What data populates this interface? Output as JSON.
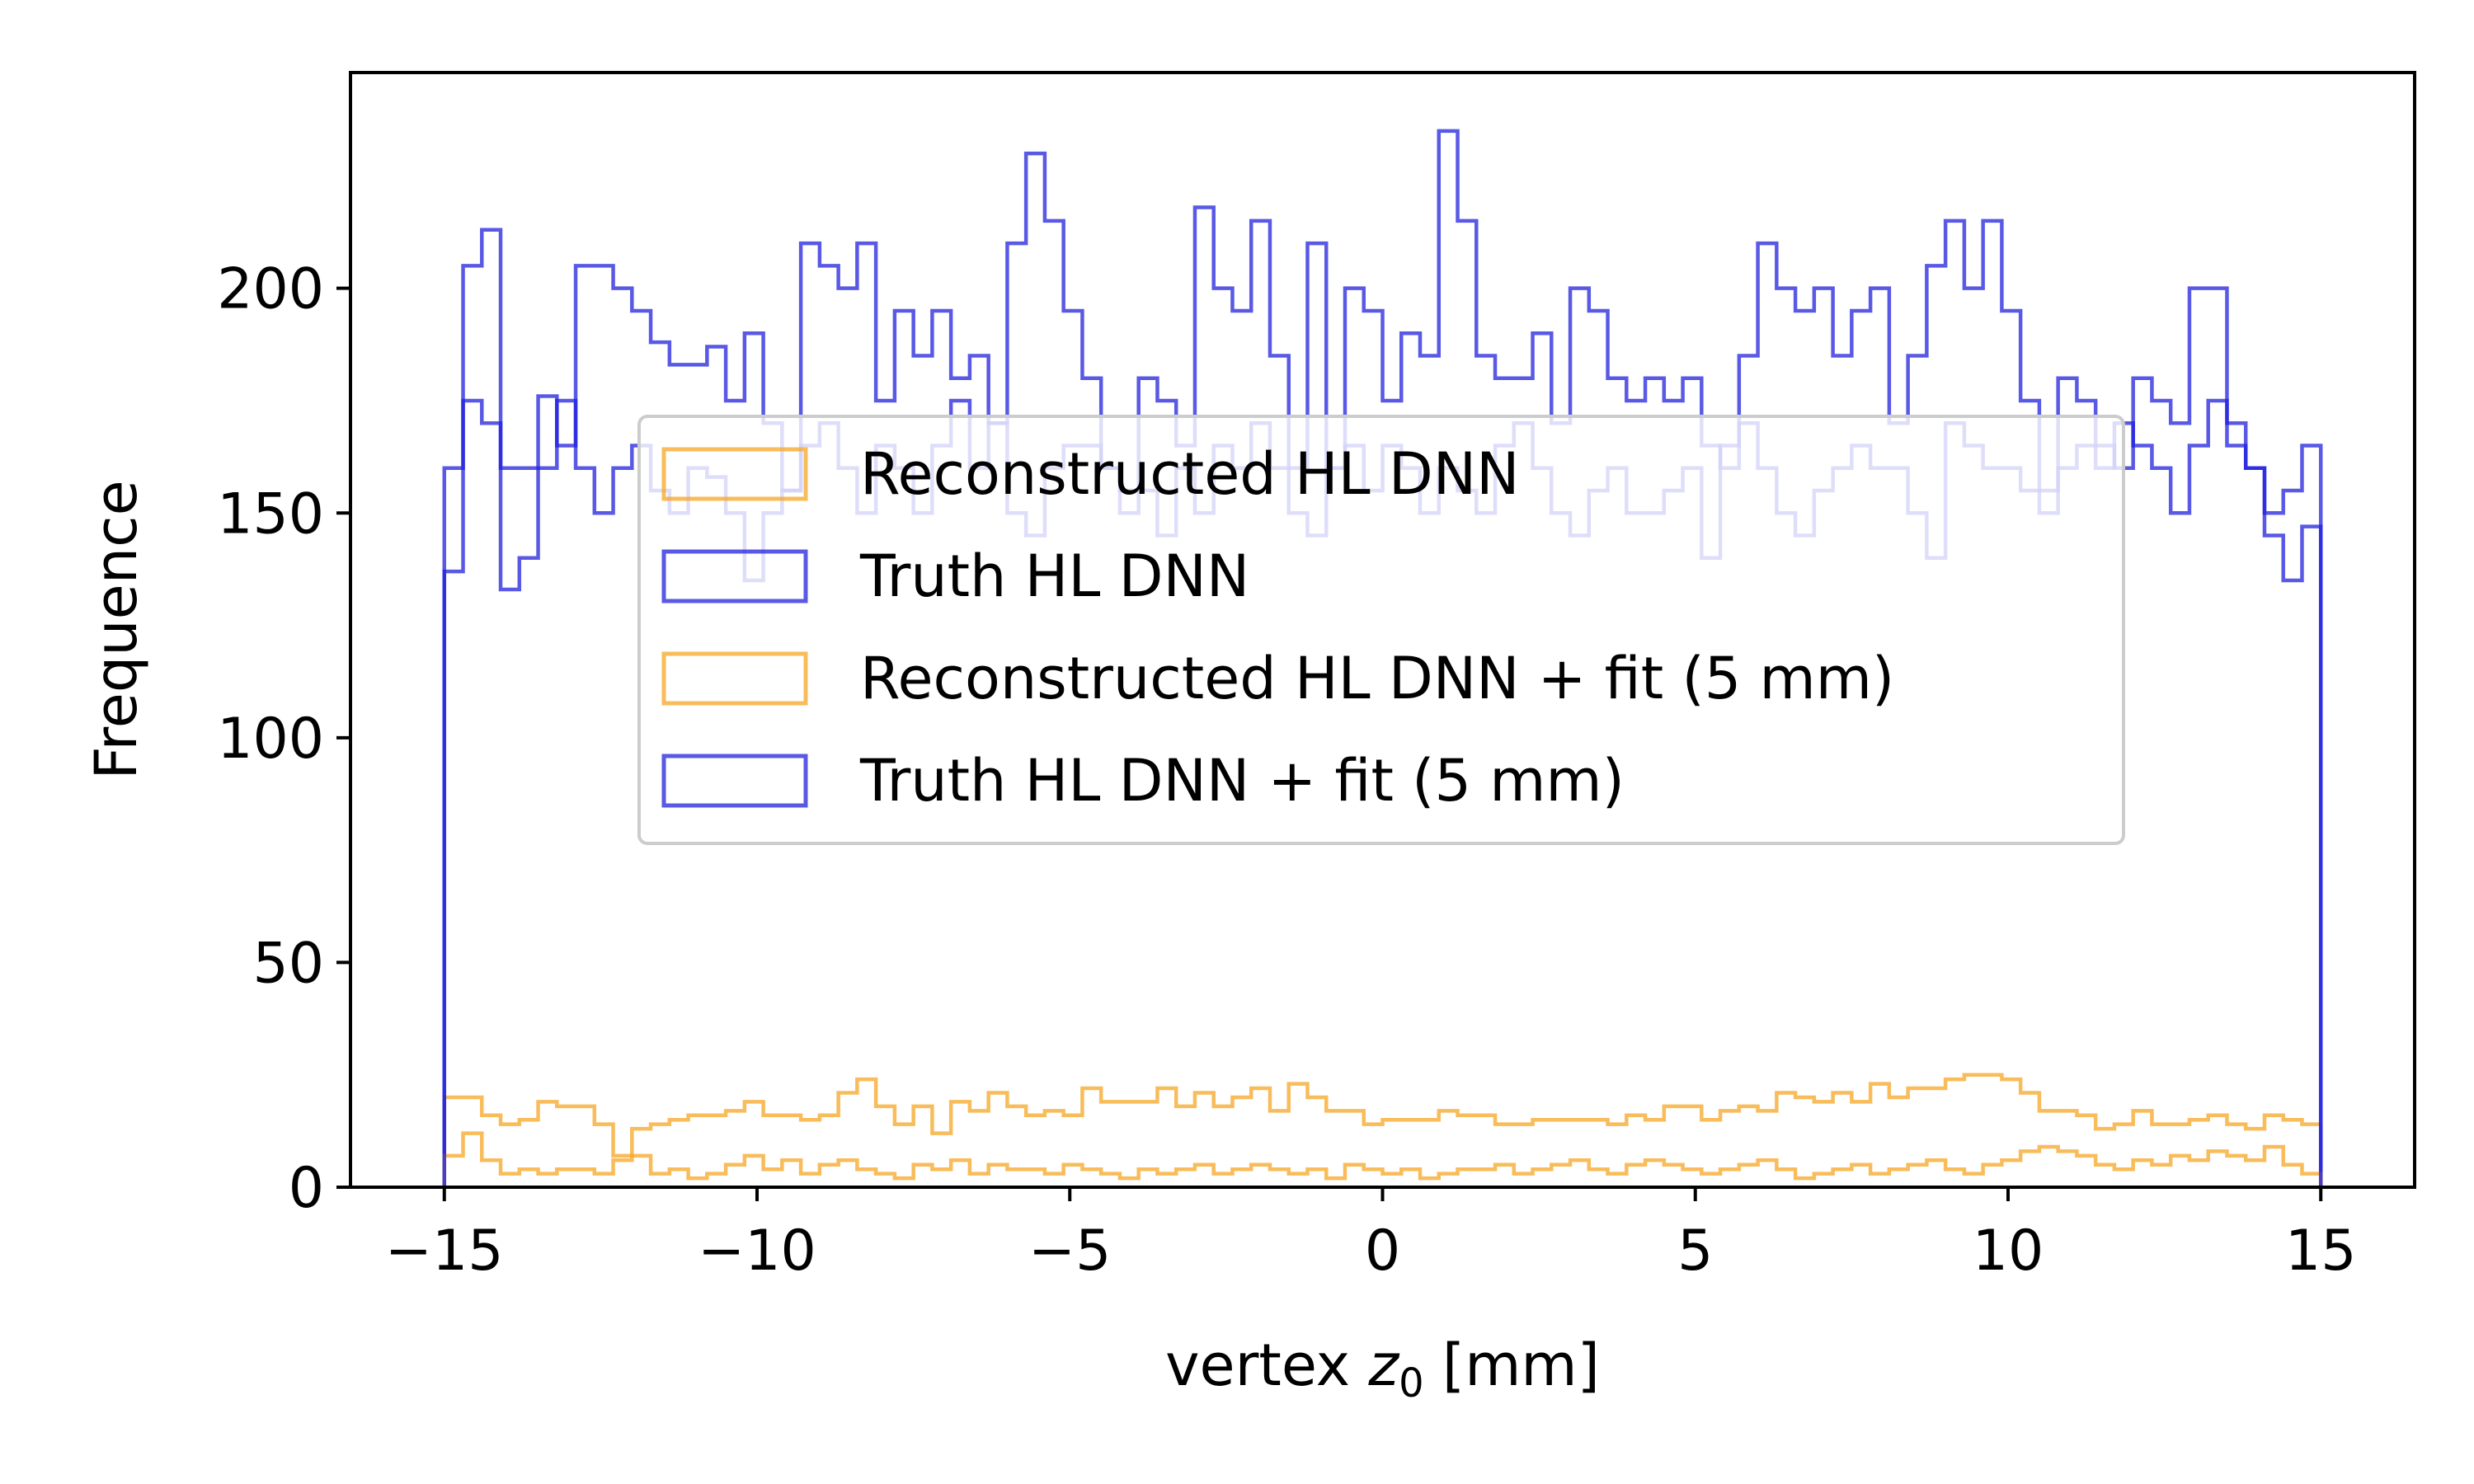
{
  "chart_data": {
    "type": "histogram-step",
    "title": "",
    "xlabel_prefix": "vertex ",
    "xlabel_var": "z",
    "xlabel_sub": "0",
    "xlabel_suffix": " [mm]",
    "ylabel": "Frequence",
    "xlim": [
      -16.5,
      16.5
    ],
    "ylim": [
      0,
      248
    ],
    "xticks": [
      -15,
      -10,
      -5,
      0,
      5,
      10,
      15
    ],
    "xtick_labels": [
      "−15",
      "−10",
      "−5",
      "0",
      "5",
      "10",
      "15"
    ],
    "yticks": [
      0,
      50,
      100,
      150,
      200
    ],
    "ytick_labels": [
      "0",
      "50",
      "100",
      "150",
      "200"
    ],
    "grid": false,
    "legend_placement": "center",
    "bin_range": [
      -15,
      15
    ],
    "bins": 100,
    "series": [
      {
        "name": "Reconstructed HL DNN",
        "color": "#f5a623",
        "style": "step",
        "values": [
          20,
          20,
          16,
          14,
          15,
          19,
          18,
          18,
          14,
          7,
          13,
          14,
          15,
          16,
          16,
          17,
          19,
          16,
          16,
          15,
          16,
          21,
          24,
          18,
          14,
          18,
          12,
          19,
          17,
          21,
          18,
          16,
          17,
          16,
          22,
          19,
          19,
          19,
          22,
          18,
          21,
          18,
          20,
          22,
          17,
          23,
          20,
          17,
          17,
          14,
          15,
          15,
          15,
          17,
          16,
          16,
          14,
          14,
          15,
          15,
          15,
          15,
          14,
          16,
          15,
          18,
          18,
          15,
          17,
          18,
          17,
          21,
          20,
          19,
          21,
          19,
          23,
          20,
          22,
          22,
          24,
          25,
          25,
          24,
          21,
          17,
          17,
          16,
          13,
          14,
          17,
          14,
          14,
          15,
          16,
          14,
          13,
          16,
          15,
          14
        ]
      },
      {
        "name": "Truth HL DNN",
        "color": "#2222dd",
        "style": "step",
        "values": [
          160,
          205,
          213,
          160,
          160,
          176,
          165,
          205,
          205,
          200,
          195,
          188,
          183,
          183,
          187,
          175,
          190,
          170,
          155,
          210,
          205,
          200,
          210,
          175,
          195,
          185,
          195,
          180,
          185,
          170,
          210,
          230,
          215,
          195,
          180,
          160,
          155,
          180,
          175,
          165,
          218,
          200,
          195,
          215,
          185,
          160,
          210,
          160,
          200,
          195,
          175,
          190,
          185,
          235,
          215,
          185,
          180,
          180,
          190,
          170,
          200,
          195,
          180,
          175,
          180,
          175,
          180,
          165,
          160,
          185,
          210,
          200,
          195,
          200,
          185,
          195,
          200,
          170,
          185,
          205,
          215,
          200,
          215,
          195,
          175,
          155,
          180,
          175,
          165,
          160,
          180,
          175,
          170,
          200,
          200,
          170,
          160,
          150,
          155,
          165
        ]
      },
      {
        "name": "Reconstructed HL DNN + fit (5 mm)",
        "color": "#f5a623",
        "style": "step",
        "values": [
          7,
          12,
          6,
          3,
          4,
          3,
          4,
          4,
          3,
          6,
          7,
          3,
          4,
          2,
          3,
          5,
          7,
          4,
          6,
          3,
          5,
          6,
          4,
          3,
          2,
          5,
          4,
          6,
          3,
          5,
          4,
          4,
          3,
          5,
          4,
          3,
          2,
          4,
          3,
          4,
          5,
          3,
          4,
          5,
          4,
          3,
          4,
          2,
          5,
          4,
          3,
          4,
          2,
          3,
          4,
          4,
          5,
          3,
          4,
          5,
          6,
          4,
          3,
          5,
          6,
          5,
          4,
          3,
          4,
          5,
          6,
          4,
          2,
          3,
          4,
          5,
          3,
          4,
          5,
          6,
          4,
          3,
          5,
          6,
          8,
          9,
          8,
          7,
          5,
          4,
          6,
          5,
          7,
          6,
          8,
          7,
          6,
          9,
          5,
          3
        ]
      },
      {
        "name": "Truth HL DNN + fit (5 mm)",
        "color": "#2222dd",
        "style": "step",
        "values": [
          137,
          175,
          170,
          133,
          140,
          160,
          175,
          160,
          150,
          160,
          165,
          155,
          150,
          160,
          158,
          150,
          135,
          150,
          155,
          165,
          170,
          160,
          150,
          165,
          160,
          150,
          165,
          175,
          160,
          170,
          150,
          145,
          160,
          165,
          165,
          160,
          150,
          155,
          145,
          160,
          150,
          165,
          160,
          170,
          160,
          150,
          145,
          160,
          165,
          155,
          165,
          160,
          150,
          160,
          155,
          150,
          165,
          170,
          160,
          150,
          145,
          155,
          160,
          150,
          150,
          155,
          160,
          140,
          165,
          170,
          160,
          150,
          145,
          155,
          160,
          165,
          160,
          160,
          150,
          140,
          170,
          165,
          160,
          160,
          155,
          150,
          160,
          165,
          160,
          170,
          165,
          160,
          150,
          165,
          175,
          165,
          160,
          145,
          135,
          147
        ]
      }
    ],
    "legend": {
      "entries": [
        {
          "label": "Reconstructed HL DNN",
          "color": "#f5a623"
        },
        {
          "label": "Truth HL DNN",
          "color": "#2222dd"
        },
        {
          "label": "Reconstructed HL DNN + fit (5 mm)",
          "color": "#f5a623"
        },
        {
          "label": "Truth HL DNN + fit (5 mm)",
          "color": "#2222dd"
        }
      ]
    }
  }
}
